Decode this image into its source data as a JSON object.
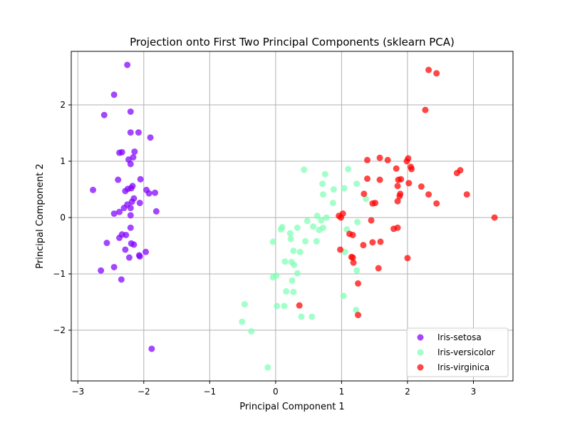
{
  "chart_data": {
    "type": "scatter",
    "title": "Projection onto First Two Principal Components (sklearn PCA)",
    "xlabel": "Principal Component 1",
    "ylabel": "Principal Component 2",
    "xlim": [
      -3.1,
      3.6
    ],
    "ylim": [
      -2.9,
      2.95
    ],
    "xticks": [
      -3,
      -2,
      -1,
      0,
      1,
      2,
      3
    ],
    "yticks": [
      -2,
      -1,
      0,
      1,
      2
    ],
    "tick_labels_x": [
      "−3",
      "−2",
      "−1",
      "0",
      "1",
      "2",
      "3"
    ],
    "tick_labels_y": [
      "−2",
      "−1",
      "0",
      "1",
      "2"
    ],
    "grid": true,
    "legend_position": "lower-right",
    "series": [
      {
        "name": "Iris-setosa",
        "color": "#8000ff",
        "points": [
          [
            -2.25,
            2.71
          ],
          [
            -2.45,
            2.18
          ],
          [
            -2.6,
            1.82
          ],
          [
            -2.2,
            1.88
          ],
          [
            -2.2,
            1.51
          ],
          [
            -2.08,
            1.51
          ],
          [
            -1.9,
            1.42
          ],
          [
            -2.37,
            1.15
          ],
          [
            -2.33,
            1.16
          ],
          [
            -2.14,
            1.17
          ],
          [
            -2.23,
            1.03
          ],
          [
            -2.16,
            1.07
          ],
          [
            -2.2,
            0.95
          ],
          [
            -2.39,
            0.67
          ],
          [
            -2.05,
            0.68
          ],
          [
            -2.77,
            0.49
          ],
          [
            -2.28,
            0.47
          ],
          [
            -2.24,
            0.51
          ],
          [
            -2.19,
            0.52
          ],
          [
            -2.17,
            0.56
          ],
          [
            -1.96,
            0.49
          ],
          [
            -1.92,
            0.43
          ],
          [
            -1.83,
            0.44
          ],
          [
            -2.15,
            0.34
          ],
          [
            -2.18,
            0.28
          ],
          [
            -2.25,
            0.23
          ],
          [
            -2.2,
            0.17
          ],
          [
            -2.3,
            0.17
          ],
          [
            -2.06,
            0.26
          ],
          [
            -2.45,
            0.07
          ],
          [
            -2.37,
            0.1
          ],
          [
            -1.81,
            0.11
          ],
          [
            -2.2,
            0.04
          ],
          [
            -2.2,
            -0.18
          ],
          [
            -2.33,
            -0.3
          ],
          [
            -2.37,
            -0.36
          ],
          [
            -2.27,
            -0.31
          ],
          [
            -2.56,
            -0.45
          ],
          [
            -2.19,
            -0.46
          ],
          [
            -2.15,
            -0.48
          ],
          [
            -2.28,
            -0.57
          ],
          [
            -1.97,
            -0.61
          ],
          [
            -2.07,
            -0.67
          ],
          [
            -2.06,
            -0.69
          ],
          [
            -2.22,
            -0.71
          ],
          [
            -2.45,
            -0.88
          ],
          [
            -2.65,
            -0.94
          ],
          [
            -2.34,
            -1.1
          ],
          [
            -1.88,
            -2.33
          ]
        ]
      },
      {
        "name": "Iris-versicolor",
        "color": "#80ffb4",
        "points": [
          [
            0.43,
            0.85
          ],
          [
            1.1,
            0.86
          ],
          [
            0.75,
            0.77
          ],
          [
            1.04,
            0.52
          ],
          [
            1.23,
            0.6
          ],
          [
            0.71,
            0.6
          ],
          [
            0.88,
            0.5
          ],
          [
            0.72,
            0.41
          ],
          [
            1.37,
            0.33
          ],
          [
            0.87,
            0.26
          ],
          [
            0.63,
            0.03
          ],
          [
            0.48,
            -0.06
          ],
          [
            0.69,
            -0.05
          ],
          [
            0.77,
            0.0
          ],
          [
            0.1,
            -0.17
          ],
          [
            0.08,
            -0.21
          ],
          [
            0.22,
            -0.28
          ],
          [
            0.33,
            -0.18
          ],
          [
            0.57,
            -0.16
          ],
          [
            0.72,
            -0.18
          ],
          [
            0.66,
            -0.22
          ],
          [
            1.08,
            -0.21
          ],
          [
            1.24,
            -0.08
          ],
          [
            -0.04,
            -0.43
          ],
          [
            0.23,
            -0.38
          ],
          [
            0.45,
            -0.42
          ],
          [
            0.62,
            -0.42
          ],
          [
            0.27,
            -0.59
          ],
          [
            0.37,
            -0.61
          ],
          [
            1.05,
            -0.61
          ],
          [
            0.14,
            -0.78
          ],
          [
            0.28,
            -0.84
          ],
          [
            0.24,
            -0.79
          ],
          [
            0.33,
            -0.99
          ],
          [
            0.01,
            -1.03
          ],
          [
            -0.04,
            -1.06
          ],
          [
            0.16,
            -1.31
          ],
          [
            0.27,
            -1.32
          ],
          [
            0.25,
            -1.12
          ],
          [
            1.03,
            -1.39
          ],
          [
            -0.47,
            -1.54
          ],
          [
            0.02,
            -1.57
          ],
          [
            0.13,
            -1.57
          ],
          [
            0.39,
            -1.76
          ],
          [
            0.55,
            -1.76
          ],
          [
            1.22,
            -1.64
          ],
          [
            1.23,
            -0.94
          ],
          [
            -0.51,
            -1.85
          ],
          [
            -0.37,
            -2.02
          ],
          [
            -0.12,
            -2.66
          ]
        ]
      },
      {
        "name": "Iris-virginica",
        "color": "#ff0000",
        "points": [
          [
            2.32,
            2.62
          ],
          [
            2.44,
            2.56
          ],
          [
            2.27,
            1.91
          ],
          [
            1.58,
            1.06
          ],
          [
            1.7,
            1.02
          ],
          [
            1.39,
            1.02
          ],
          [
            1.99,
            1.0
          ],
          [
            2.01,
            1.05
          ],
          [
            1.83,
            0.87
          ],
          [
            2.05,
            0.9
          ],
          [
            2.06,
            0.86
          ],
          [
            2.8,
            0.84
          ],
          [
            2.75,
            0.79
          ],
          [
            1.39,
            0.69
          ],
          [
            1.58,
            0.67
          ],
          [
            1.86,
            0.67
          ],
          [
            1.9,
            0.68
          ],
          [
            2.02,
            0.61
          ],
          [
            1.85,
            0.56
          ],
          [
            2.21,
            0.55
          ],
          [
            1.34,
            0.42
          ],
          [
            1.89,
            0.42
          ],
          [
            1.88,
            0.38
          ],
          [
            2.32,
            0.41
          ],
          [
            2.9,
            0.41
          ],
          [
            1.85,
            0.29
          ],
          [
            1.51,
            0.26
          ],
          [
            1.47,
            0.25
          ],
          [
            2.44,
            0.25
          ],
          [
            3.32,
            0.0
          ],
          [
            0.96,
            0.03
          ],
          [
            0.99,
            0.0
          ],
          [
            1.02,
            0.07
          ],
          [
            1.45,
            -0.05
          ],
          [
            1.79,
            -0.2
          ],
          [
            1.85,
            -0.18
          ],
          [
            1.12,
            -0.29
          ],
          [
            1.17,
            -0.31
          ],
          [
            1.59,
            -0.43
          ],
          [
            1.47,
            -0.44
          ],
          [
            1.33,
            -0.49
          ],
          [
            0.98,
            -0.57
          ],
          [
            1.15,
            -0.7
          ],
          [
            1.17,
            -0.71
          ],
          [
            1.18,
            -0.8
          ],
          [
            2.0,
            -0.72
          ],
          [
            1.56,
            -0.9
          ],
          [
            1.25,
            -1.17
          ],
          [
            0.36,
            -1.56
          ],
          [
            1.25,
            -1.73
          ]
        ]
      }
    ]
  }
}
